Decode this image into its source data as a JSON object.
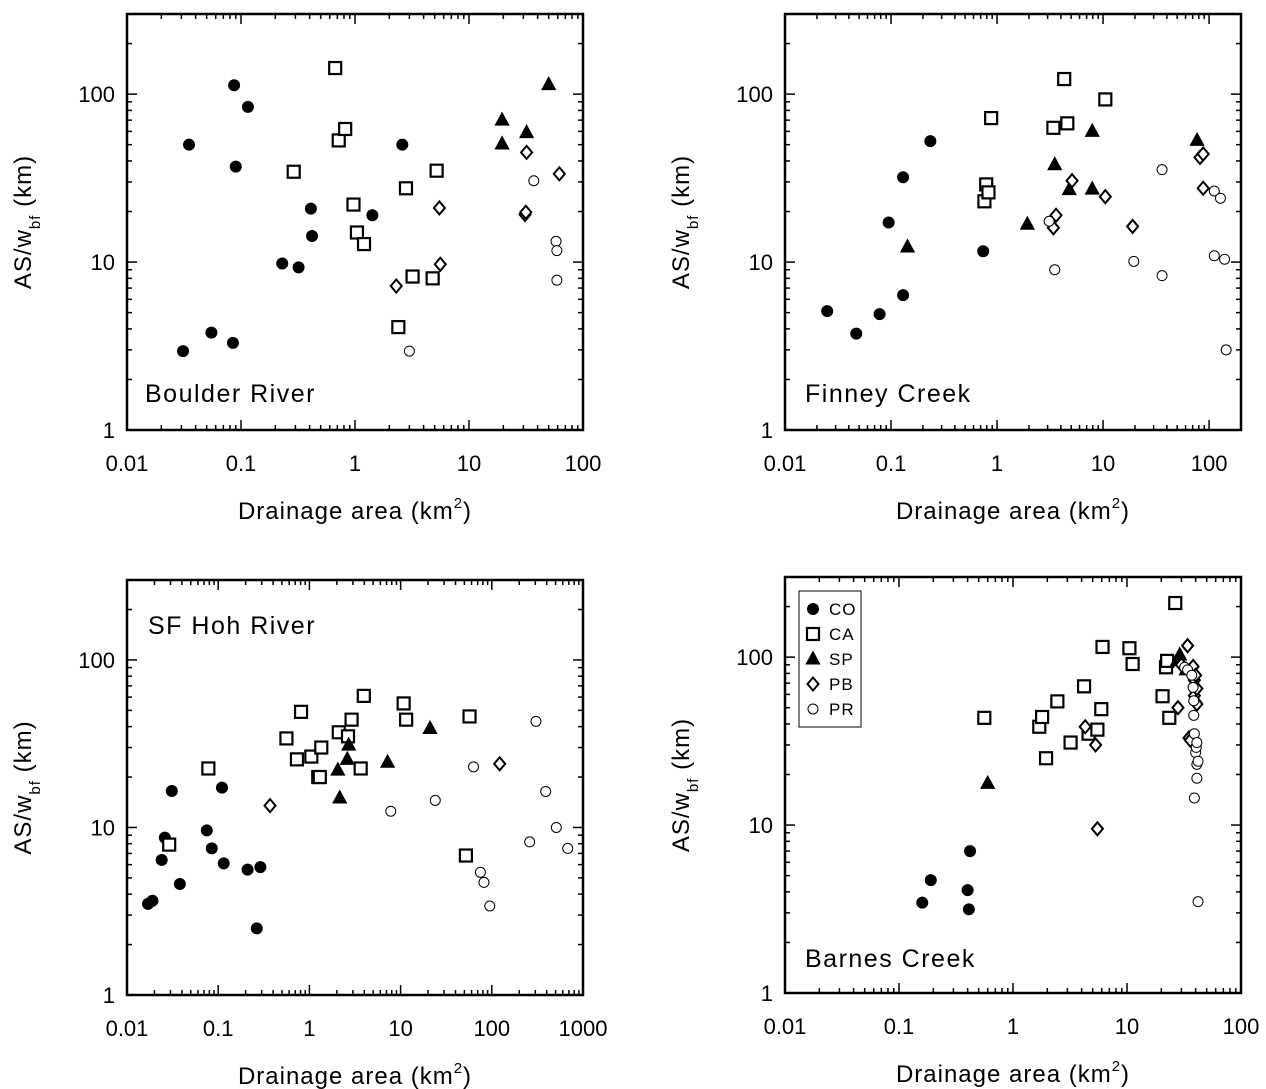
{
  "chart_data": [
    {
      "type": "scatter",
      "title": "Boulder River",
      "xlabel": "Drainage area (km",
      "xlabel_sup": "2",
      "xlabel_end": ")",
      "ylabel": "AS/w",
      "ylabel_sub": "bf",
      "ylabel_end": " (km)",
      "xscale": "log",
      "yscale": "log",
      "xlim": [
        0.01,
        100
      ],
      "ylim": [
        1,
        300
      ],
      "xticks": [
        0.01,
        0.1,
        1,
        10,
        100
      ],
      "xtick_labels": [
        "0.01",
        "0.1",
        "1",
        "10",
        "100"
      ],
      "yticks": [
        1,
        10,
        100
      ],
      "ytick_labels": [
        "1",
        "10",
        "100"
      ],
      "grid": false,
      "series": [
        {
          "name": "CO",
          "marker": "filled-circle",
          "points": [
            [
              0.031,
              2.95
            ],
            [
              0.035,
              50
            ],
            [
              0.055,
              3.8
            ],
            [
              0.085,
              3.3
            ],
            [
              0.087,
              113
            ],
            [
              0.09,
              37
            ],
            [
              0.115,
              84
            ],
            [
              0.23,
              9.8
            ],
            [
              0.32,
              9.3
            ],
            [
              0.41,
              20.8
            ],
            [
              0.42,
              14.3
            ],
            [
              1.42,
              19
            ],
            [
              2.6,
              50
            ]
          ]
        },
        {
          "name": "CA",
          "marker": "open-square",
          "points": [
            [
              0.29,
              34.5
            ],
            [
              0.67,
              143
            ],
            [
              0.72,
              53
            ],
            [
              0.82,
              62
            ],
            [
              0.97,
              22
            ],
            [
              1.04,
              15
            ],
            [
              1.2,
              12.8
            ],
            [
              2.4,
              4.1
            ],
            [
              2.8,
              27.5
            ],
            [
              3.2,
              8.2
            ],
            [
              4.8,
              8
            ],
            [
              5.2,
              35
            ]
          ]
        },
        {
          "name": "SP",
          "marker": "filled-triangle",
          "points": [
            [
              19.5,
              70
            ],
            [
              19.5,
              50.5
            ],
            [
              32,
              59
            ],
            [
              50,
              114
            ]
          ]
        },
        {
          "name": "PB",
          "marker": "open-diamond",
          "points": [
            [
              2.3,
              7.2
            ],
            [
              5.5,
              21
            ],
            [
              5.6,
              9.7
            ],
            [
              31,
              19.2
            ],
            [
              31.5,
              19.8
            ],
            [
              32,
              45
            ],
            [
              62,
              33.5
            ]
          ]
        },
        {
          "name": "PR",
          "marker": "open-circle",
          "points": [
            [
              3,
              2.95
            ],
            [
              37,
              30.5
            ],
            [
              58,
              13.3
            ],
            [
              59,
              11.7
            ],
            [
              59,
              7.8
            ]
          ]
        }
      ]
    },
    {
      "type": "scatter",
      "title": "Finney Creek",
      "xlabel": "Drainage area (km",
      "xlabel_sup": "2",
      "xlabel_end": ")",
      "ylabel": "AS/w",
      "ylabel_sub": "bf",
      "ylabel_end": " (km)",
      "xscale": "log",
      "yscale": "log",
      "xlim": [
        0.01,
        200
      ],
      "ylim": [
        1,
        300
      ],
      "xticks": [
        0.01,
        0.1,
        1,
        10,
        100
      ],
      "xtick_labels": [
        "0.01",
        "0.1",
        "1",
        "10",
        "100"
      ],
      "yticks": [
        1,
        10,
        100
      ],
      "ytick_labels": [
        "1",
        "10",
        "100"
      ],
      "grid": false,
      "series": [
        {
          "name": "CO",
          "marker": "filled-circle",
          "points": [
            [
              0.025,
              5.1
            ],
            [
              0.047,
              3.75
            ],
            [
              0.078,
              4.9
            ],
            [
              0.095,
              17.2
            ],
            [
              0.13,
              32
            ],
            [
              0.13,
              6.35
            ],
            [
              0.235,
              52.5
            ],
            [
              0.74,
              11.6
            ]
          ]
        },
        {
          "name": "CA",
          "marker": "open-square",
          "points": [
            [
              0.76,
              23
            ],
            [
              0.79,
              29
            ],
            [
              0.83,
              26
            ],
            [
              0.88,
              72
            ],
            [
              3.4,
              63
            ],
            [
              4.3,
              123
            ],
            [
              4.6,
              67
            ],
            [
              10.5,
              93
            ]
          ]
        },
        {
          "name": "SP",
          "marker": "filled-triangle",
          "points": [
            [
              0.143,
              12.3
            ],
            [
              1.93,
              16.8
            ],
            [
              3.5,
              38
            ],
            [
              4.8,
              27
            ],
            [
              7.9,
              60
            ],
            [
              7.9,
              27.2
            ],
            [
              77,
              53
            ]
          ]
        },
        {
          "name": "PB",
          "marker": "open-diamond",
          "points": [
            [
              3.4,
              16
            ],
            [
              3.6,
              19
            ],
            [
              5.1,
              30.5
            ],
            [
              10.5,
              24.5
            ],
            [
              19,
              16.3
            ],
            [
              82,
              42
            ],
            [
              88,
              44
            ],
            [
              88,
              27.5
            ]
          ]
        },
        {
          "name": "PR",
          "marker": "open-circle",
          "points": [
            [
              3.1,
              17.5
            ],
            [
              3.5,
              9
            ],
            [
              19.5,
              10.1
            ],
            [
              36,
              35.5
            ],
            [
              36,
              8.3
            ],
            [
              112,
              26.5
            ],
            [
              112,
              10.9
            ],
            [
              128,
              24
            ],
            [
              140,
              10.4
            ],
            [
              145,
              3
            ]
          ]
        }
      ]
    },
    {
      "type": "scatter",
      "title": "SF Hoh River",
      "xlabel": "Drainage area (km",
      "xlabel_sup": "2",
      "xlabel_end": ")",
      "ylabel": "AS/w",
      "ylabel_sub": "bf",
      "ylabel_end": " (km)",
      "xscale": "log",
      "yscale": "log",
      "xlim": [
        0.01,
        1000
      ],
      "ylim": [
        1,
        300
      ],
      "xticks": [
        0.01,
        0.1,
        1,
        10,
        100,
        1000
      ],
      "xtick_labels": [
        "0.01",
        "0.1",
        "1",
        "10",
        "100",
        "1000"
      ],
      "yticks": [
        1,
        10,
        100
      ],
      "ytick_labels": [
        "1",
        "10",
        "100"
      ],
      "grid": false,
      "series": [
        {
          "name": "CO",
          "marker": "filled-circle",
          "points": [
            [
              0.017,
              3.5
            ],
            [
              0.019,
              3.65
            ],
            [
              0.024,
              6.4
            ],
            [
              0.026,
              8.7
            ],
            [
              0.031,
              16.5
            ],
            [
              0.038,
              4.6
            ],
            [
              0.075,
              9.6
            ],
            [
              0.085,
              7.5
            ],
            [
              0.11,
              17.3
            ],
            [
              0.115,
              6.1
            ],
            [
              0.21,
              5.6
            ],
            [
              0.265,
              2.5
            ],
            [
              0.29,
              5.8
            ]
          ]
        },
        {
          "name": "CA",
          "marker": "open-square",
          "points": [
            [
              0.029,
              7.9
            ],
            [
              0.078,
              22.5
            ],
            [
              0.56,
              34
            ],
            [
              0.73,
              25.5
            ],
            [
              0.81,
              49
            ],
            [
              1.05,
              26.5
            ],
            [
              1.25,
              20
            ],
            [
              1.3,
              20
            ],
            [
              1.35,
              30
            ],
            [
              2.1,
              37
            ],
            [
              2.65,
              35
            ],
            [
              2.9,
              44
            ],
            [
              3.65,
              22.5
            ],
            [
              3.95,
              61
            ],
            [
              10.8,
              55
            ],
            [
              11.5,
              44
            ],
            [
              52,
              6.8
            ],
            [
              57,
              46
            ]
          ]
        },
        {
          "name": "SP",
          "marker": "filled-triangle",
          "points": [
            [
              2.05,
              22
            ],
            [
              2.15,
              15
            ],
            [
              2.6,
              25.5
            ],
            [
              2.7,
              31
            ],
            [
              7.2,
              24.5
            ],
            [
              21,
              39
            ]
          ]
        },
        {
          "name": "PB",
          "marker": "open-diamond",
          "points": [
            [
              0.37,
              13.5
            ],
            [
              122,
              24
            ]
          ]
        },
        {
          "name": "PR",
          "marker": "open-circle",
          "points": [
            [
              7.8,
              12.5
            ],
            [
              24,
              14.5
            ],
            [
              63,
              23
            ],
            [
              75,
              5.4
            ],
            [
              82,
              4.7
            ],
            [
              95,
              3.4
            ],
            [
              260,
              8.2
            ],
            [
              305,
              43
            ],
            [
              390,
              16.4
            ],
            [
              510,
              10
            ],
            [
              680,
              7.5
            ]
          ]
        }
      ]
    },
    {
      "type": "scatter",
      "title": "Barnes Creek",
      "xlabel": "Drainage area (km",
      "xlabel_sup": "2",
      "xlabel_end": ")",
      "ylabel": "AS/w",
      "ylabel_sub": "bf",
      "ylabel_end": " (km)",
      "xscale": "log",
      "yscale": "log",
      "xlim": [
        0.01,
        100
      ],
      "ylim": [
        1,
        300
      ],
      "xticks": [
        0.01,
        0.1,
        1,
        10,
        100
      ],
      "xtick_labels": [
        "0.01",
        "0.1",
        "1",
        "10",
        "100"
      ],
      "yticks": [
        1,
        10,
        100
      ],
      "ytick_labels": [
        "1",
        "10",
        "100"
      ],
      "grid": false,
      "legend": {
        "position": "top-left",
        "entries": [
          {
            "label": "CO",
            "marker": "filled-circle"
          },
          {
            "label": "CA",
            "marker": "open-square"
          },
          {
            "label": "SP",
            "marker": "filled-triangle"
          },
          {
            "label": "PB",
            "marker": "open-diamond"
          },
          {
            "label": "PR",
            "marker": "open-circle"
          }
        ]
      },
      "series": [
        {
          "name": "CO",
          "marker": "filled-circle",
          "points": [
            [
              0.16,
              3.45
            ],
            [
              0.19,
              4.7
            ],
            [
              0.4,
              4.1
            ],
            [
              0.41,
              3.15
            ],
            [
              0.42,
              7
            ]
          ]
        },
        {
          "name": "CA",
          "marker": "open-square",
          "points": [
            [
              0.56,
              43.5
            ],
            [
              1.7,
              38.5
            ],
            [
              1.8,
              44
            ],
            [
              1.95,
              25
            ],
            [
              2.45,
              54.5
            ],
            [
              3.2,
              31
            ],
            [
              4.2,
              67
            ],
            [
              4.6,
              35
            ],
            [
              5.5,
              37
            ],
            [
              5.95,
              49
            ],
            [
              6.1,
              115
            ],
            [
              10.5,
              113
            ],
            [
              11.2,
              91
            ],
            [
              20.5,
              58.5
            ],
            [
              22,
              87
            ],
            [
              22.5,
              95
            ],
            [
              23.5,
              43.5
            ],
            [
              26.5,
              210
            ]
          ]
        },
        {
          "name": "SP",
          "marker": "filled-triangle",
          "points": [
            [
              0.6,
              17.7
            ],
            [
              27.5,
              95
            ],
            [
              29,
              103
            ],
            [
              33,
              84
            ]
          ]
        },
        {
          "name": "PB",
          "marker": "open-diamond",
          "points": [
            [
              4.3,
              38.5
            ],
            [
              5.3,
              30
            ],
            [
              5.5,
              9.5
            ],
            [
              28,
              50
            ],
            [
              30,
              90
            ],
            [
              34,
              117
            ],
            [
              35,
              33
            ],
            [
              36,
              32
            ],
            [
              36.5,
              83
            ],
            [
              38,
              88
            ],
            [
              39,
              73
            ],
            [
              39,
              59
            ],
            [
              40,
              78
            ],
            [
              40,
              54
            ],
            [
              41,
              65
            ],
            [
              41,
              52.5
            ]
          ]
        },
        {
          "name": "PR",
          "marker": "open-circle",
          "points": [
            [
              32,
              87
            ],
            [
              34,
              84
            ],
            [
              37,
              78
            ],
            [
              38,
              66
            ],
            [
              38.5,
              55
            ],
            [
              38.5,
              45
            ],
            [
              39,
              35
            ],
            [
              39,
              14.5
            ],
            [
              40,
              27
            ],
            [
              40.5,
              29
            ],
            [
              41,
              23
            ],
            [
              41,
              19
            ],
            [
              41,
              31
            ],
            [
              42,
              24
            ],
            [
              42,
              3.5
            ]
          ]
        }
      ]
    }
  ]
}
